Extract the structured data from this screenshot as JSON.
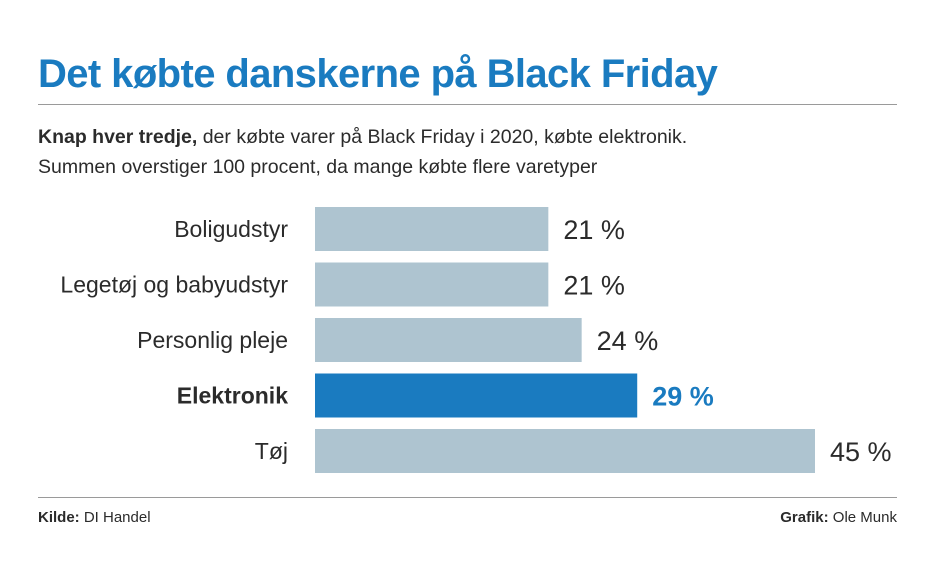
{
  "title": "Det købte danskerne på Black Friday",
  "subtitle": {
    "lead": "Knap hver tredje,",
    "text": " der købte varer på Black Friday i 2020, købte elektronik.",
    "line2": "Summen overstiger 100 procent, da mange købte flere varetyper"
  },
  "chart_data": {
    "type": "bar",
    "orientation": "horizontal",
    "categories": [
      "Boligudstyr",
      "Legetøj og babyudstyr",
      "Personlig pleje",
      "Elektronik",
      "Tøj"
    ],
    "values": [
      21,
      21,
      24,
      29,
      45
    ],
    "value_labels": [
      "21 %",
      "21 %",
      "24 %",
      "29 %",
      "45 %"
    ],
    "highlight": "Elektronik",
    "unit": "%",
    "xlim": [
      0,
      45
    ],
    "grid": false,
    "colors": {
      "bar": "#aec4d0",
      "highlight": "#1a7bc0",
      "title": "#1a7bc0"
    }
  },
  "footer": {
    "source_label": "Kilde:",
    "source": "DI Handel",
    "credit_label": "Grafik:",
    "credit": "Ole Munk"
  }
}
